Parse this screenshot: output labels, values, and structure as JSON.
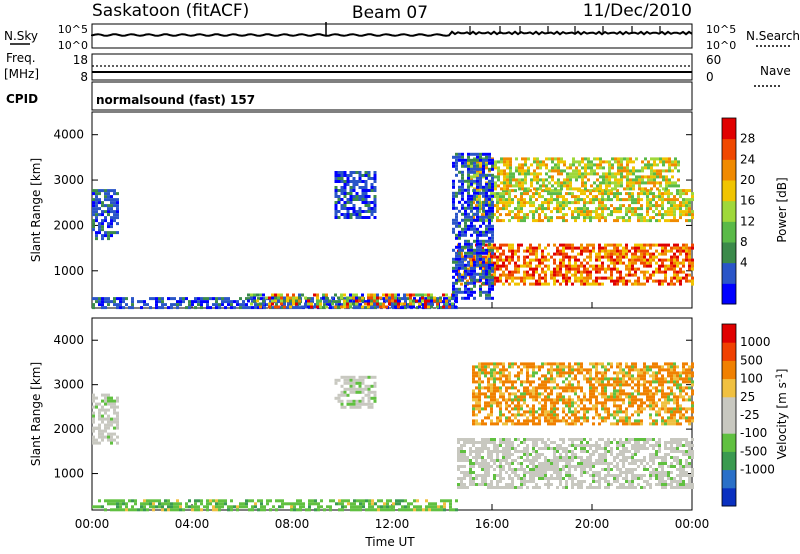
{
  "header": {
    "station": "Saskatoon (fitACF)",
    "beam": "Beam 07",
    "date": "11/Dec/2010"
  },
  "panels": {
    "nsky": {
      "label": "N.Sky",
      "right_label": "N.Search",
      "yticks": [
        "10^5",
        "10^0"
      ],
      "right_yticks": [
        "10^5",
        "10^0"
      ]
    },
    "freq": {
      "label": "Freq.",
      "unit": "[MHz]",
      "right_label": "Nave",
      "yticks": [
        "18",
        "8"
      ],
      "right_yticks": [
        "60",
        "0"
      ]
    },
    "cpid": {
      "label": "CPID",
      "mode": "normalsound (fast) 157"
    }
  },
  "chart_data": [
    {
      "type": "heatmap",
      "name": "power",
      "ylabel": "Slant Range [km]",
      "yticks": [
        "4000",
        "3000",
        "2000",
        "1000"
      ],
      "ylim": [
        180,
        4500
      ],
      "xlim": [
        0,
        24
      ],
      "colorbar": {
        "label": "Power [dB]",
        "ticks": [
          "28",
          "24",
          "20",
          "16",
          "12",
          "8",
          "4"
        ],
        "colors": [
          "#0000ff",
          "#2a55c8",
          "#3b8a4a",
          "#5aba48",
          "#9fd83a",
          "#f0c400",
          "#f08a00",
          "#f04800",
          "#e00000"
        ]
      },
      "regions": [
        {
          "t": [
            0.0,
            14.6
          ],
          "r": [
            180,
            420
          ],
          "level": "low"
        },
        {
          "t": [
            0.0,
            1.0
          ],
          "r": [
            1700,
            2800
          ],
          "level": "low"
        },
        {
          "t": [
            9.7,
            11.3
          ],
          "r": [
            2200,
            3200
          ],
          "level": "low"
        },
        {
          "t": [
            6.2,
            14.6
          ],
          "r": [
            180,
            500
          ],
          "level": "mixed"
        },
        {
          "t": [
            14.6,
            24.0
          ],
          "r": [
            700,
            1600
          ],
          "level": "high"
        },
        {
          "t": [
            15.2,
            24.0
          ],
          "r": [
            2100,
            2800
          ],
          "level": "mid"
        },
        {
          "t": [
            15.0,
            23.5
          ],
          "r": [
            2800,
            3500
          ],
          "level": "mid"
        },
        {
          "t": [
            14.4,
            16.0
          ],
          "r": [
            400,
            3600
          ],
          "level": "low"
        }
      ]
    },
    {
      "type": "heatmap",
      "name": "velocity",
      "ylabel": "Slant Range [km]",
      "yticks": [
        "4000",
        "3000",
        "2000",
        "1000"
      ],
      "ylim": [
        180,
        4500
      ],
      "xlim": [
        0,
        24
      ],
      "xlabel": "Time UT",
      "xticks": [
        "00:00",
        "04:00",
        "08:00",
        "12:00",
        "16:00",
        "20:00",
        "00:00"
      ],
      "colorbar": {
        "label": "Velocity [m s",
        "label_superscript": "-1",
        "label_close": "]",
        "ticks": [
          "1000",
          "500",
          "100",
          "25",
          "-25",
          "-100",
          "-500",
          "-1000"
        ],
        "colors": [
          "#0a30c0",
          "#2a70c8",
          "#3a9a50",
          "#60c040",
          "#c8c8c0",
          "#c8c8c0",
          "#f0c040",
          "#f08000",
          "#f04000",
          "#e00000"
        ]
      },
      "regions": [
        {
          "t": [
            0.0,
            14.6
          ],
          "r": [
            180,
            420
          ],
          "level": "green"
        },
        {
          "t": [
            0.0,
            1.0
          ],
          "r": [
            1700,
            2800
          ],
          "level": "grey"
        },
        {
          "t": [
            9.7,
            11.3
          ],
          "r": [
            2500,
            3200
          ],
          "level": "grey"
        },
        {
          "t": [
            14.6,
            24.0
          ],
          "r": [
            700,
            1800
          ],
          "level": "grey"
        },
        {
          "t": [
            15.2,
            24.0
          ],
          "r": [
            2100,
            3500
          ],
          "level": "orange"
        }
      ]
    }
  ]
}
